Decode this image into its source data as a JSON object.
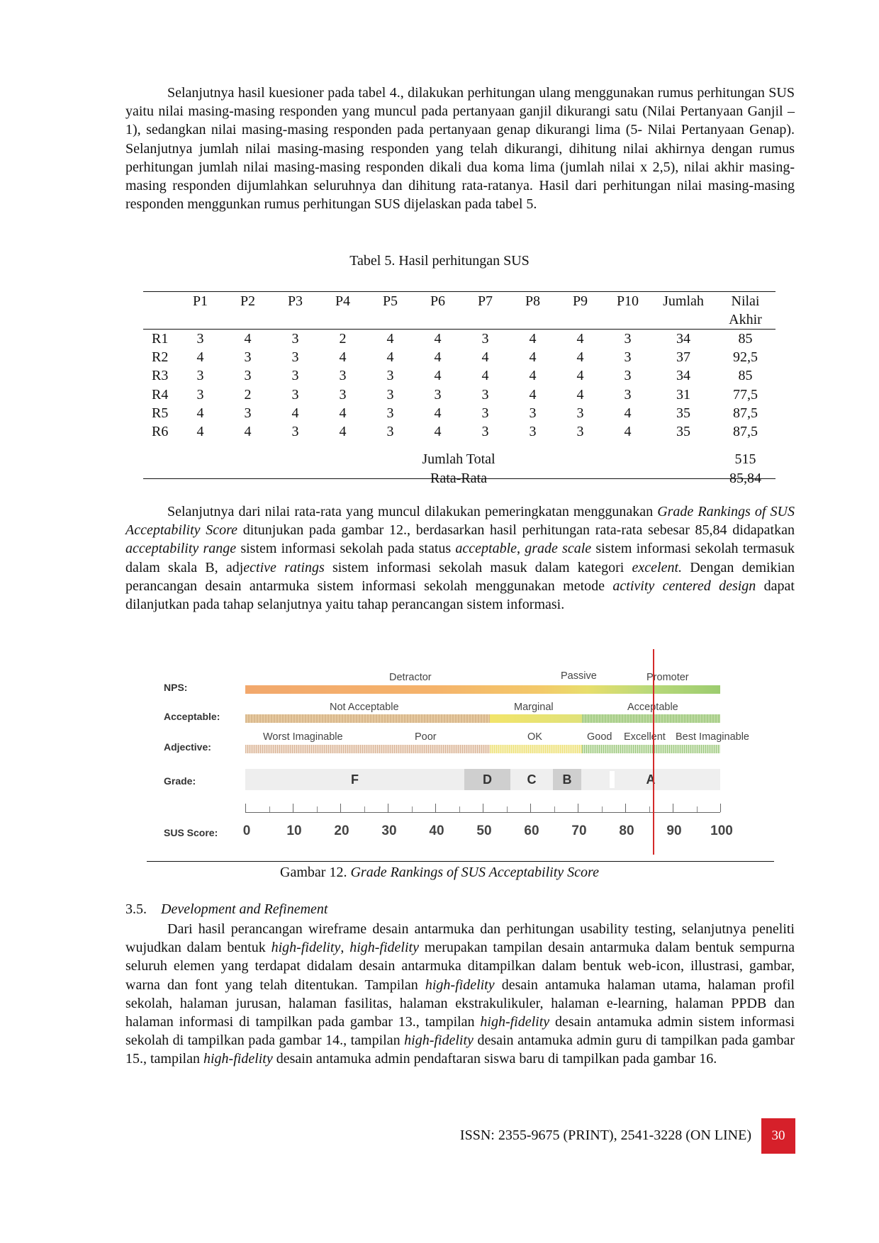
{
  "para1": "Selanjutnya hasil kuesioner pada tabel 4., dilakukan perhitungan ulang menggunakan rumus perhitungan SUS yaitu nilai masing-masing responden yang muncul pada pertanyaan ganjil dikurangi satu (Nilai Pertanyaan Ganjil – 1), sedangkan nilai masing-masing responden pada pertanyaan genap dikurangi lima (5- Nilai Pertanyaan Genap). Selanjutnya jumlah nilai masing-masing responden yang telah dikurangi, dihitung nilai akhirnya dengan rumus perhitungan jumlah nilai masing-masing responden dikali dua koma lima (jumlah nilai x 2,5), nilai akhir masing-masing responden dijumlahkan seluruhnya dan dihitung rata-ratanya. Hasil dari perhitungan nilai masing-masing responden menggunkan rumus perhitungan SUS dijelaskan pada tabel 5.",
  "table_caption": "Tabel 5. Hasil perhitungan SUS",
  "table": {
    "headers": [
      "",
      "P1",
      "P2",
      "P3",
      "P4",
      "P5",
      "P6",
      "P7",
      "P8",
      "P9",
      "P10",
      "Jumlah",
      "Nilai Akhir"
    ],
    "rows": [
      [
        "R1",
        "3",
        "4",
        "3",
        "2",
        "4",
        "4",
        "3",
        "4",
        "4",
        "3",
        "34",
        "85"
      ],
      [
        "R2",
        "4",
        "3",
        "3",
        "4",
        "4",
        "4",
        "4",
        "4",
        "4",
        "3",
        "37",
        "92,5"
      ],
      [
        "R3",
        "3",
        "3",
        "3",
        "3",
        "3",
        "4",
        "4",
        "4",
        "4",
        "3",
        "34",
        "85"
      ],
      [
        "R4",
        "3",
        "2",
        "3",
        "3",
        "3",
        "3",
        "3",
        "4",
        "4",
        "3",
        "31",
        "77,5"
      ],
      [
        "R5",
        "4",
        "3",
        "4",
        "4",
        "3",
        "4",
        "3",
        "3",
        "3",
        "4",
        "35",
        "87,5"
      ],
      [
        "R6",
        "4",
        "4",
        "3",
        "4",
        "3",
        "4",
        "3",
        "3",
        "3",
        "4",
        "35",
        "87,5"
      ]
    ],
    "total_label": "Jumlah Total",
    "total_value": "515",
    "avg_label": "Rata-Rata",
    "avg_value": "85,84"
  },
  "para2": {
    "s1": "Selanjutnya dari nilai rata-rata yang muncul dilakukan pemeringkatan menggunakan ",
    "s1i": "Grade Rankings of SUS Acceptability Score",
    "s2": " ditunjukan pada gambar 12., berdasarkan hasil perhitungan rata-rata sebesar 85,84 didapatkan ",
    "s2i": "acceptability range",
    "s3": " sistem informasi sekolah pada status ",
    "s3i": "acceptable",
    "s4": ", ",
    "s4i": "grade scale",
    "s5": " sistem informasi sekolah termasuk dalam skala B, adj",
    "s5i": "ective ratings",
    "s6": " sistem informasi sekolah masuk dalam kategori ",
    "s6i": "excelent.",
    "s7": " Dengan demikian perancangan desain antarmuka sistem informasi sekolah menggunakan metode ",
    "s7i": "activity centered design",
    "s8": " dapat dilanjutkan pada tahap selanjutnya yaitu tahap perancangan sistem informasi."
  },
  "figure": {
    "labels": {
      "nps": "NPS:",
      "acceptable": "Acceptable:",
      "adjective": "Adjective:",
      "grade": "Grade:",
      "sus": "SUS Score:"
    },
    "nps": [
      "Detractor",
      "Passive",
      "Promoter"
    ],
    "acc": [
      "Not Acceptable",
      "Marginal",
      "Acceptable"
    ],
    "adj": [
      "Worst Imaginable",
      "Poor",
      "OK",
      "Good",
      "Excellent",
      "Best Imaginable"
    ],
    "grades": [
      "F",
      "D",
      "C",
      "B",
      "A"
    ],
    "scores": [
      "0",
      "10",
      "20",
      "30",
      "40",
      "50",
      "60",
      "70",
      "80",
      "90",
      "100"
    ],
    "marker_score": 85.84,
    "marker_color": "#d42a2a"
  },
  "figure_caption_a": "Gambar 12. ",
  "figure_caption_b": "Grade Rankings of SUS Acceptability Score",
  "section": {
    "number": "3.5.",
    "title": "Development and Refinement"
  },
  "para3": {
    "s1": "Dari hasil perancangan wireframe desain antarmuka dan perhitungan usability testing, selanjutnya peneliti wujudkan dalam bentuk ",
    "s1i": "high-fidelity",
    "s2": ", ",
    "s2i": "high-fidelity",
    "s3": " merupakan tampilan desain antarmuka dalam bentuk sempurna seluruh elemen yang terdapat didalam desain antarmuka ditampilkan dalam bentuk web-icon, illustrasi, gambar, warna dan font yang telah ditentukan. Tampilan ",
    "s3i": "high-fidelity",
    "s4": " desain antamuka halaman utama, halaman profil sekolah, halaman jurusan, halaman fasilitas, halaman ekstrakulikuler, halaman e-learning, halaman PPDB dan halaman informasi di tampilkan pada gambar 13., tampilan ",
    "s4i": "high-fidelity",
    "s5": " desain antamuka admin sistem informasi sekolah di tampilkan pada gambar 14., tampilan ",
    "s5i": "high-fidelity",
    "s6": " desain antamuka admin guru di tampilkan pada gambar 15., tampilan ",
    "s6i": "high-fidelity",
    "s7": " desain antamuka admin pendaftaran siswa baru di tampilkan pada gambar 16."
  },
  "footer": {
    "issn": "ISSN: 2355-9675 (PRINT), 2541-3228 (ON LINE)",
    "page": "30"
  }
}
